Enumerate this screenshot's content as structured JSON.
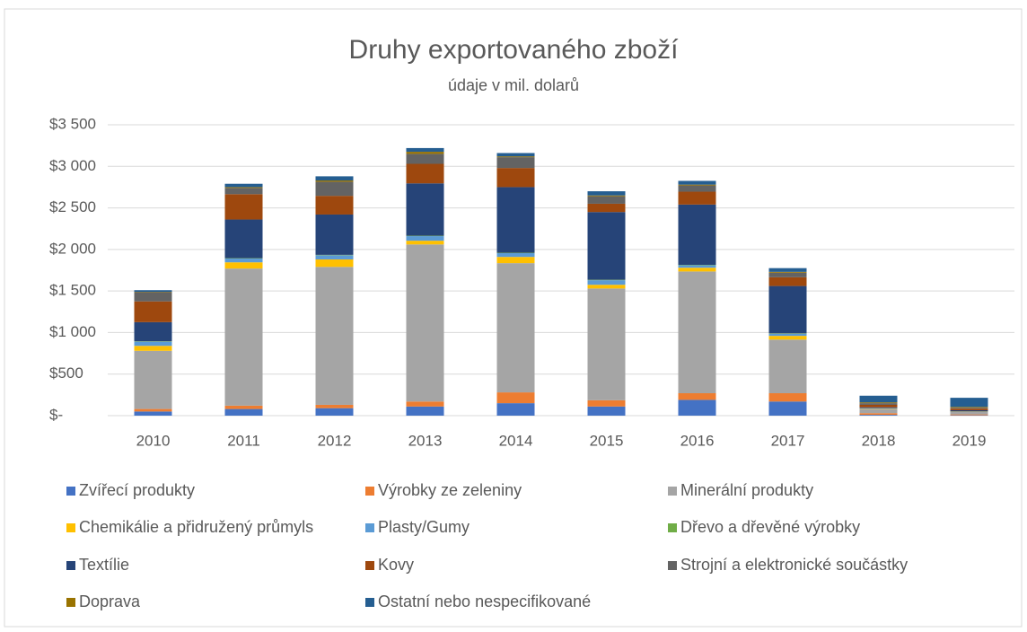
{
  "chart_data": {
    "type": "stacked_bar",
    "title": "Druhy exportovaného zboží",
    "subtitle": "údaje v mil. dolarů",
    "categories": [
      "2010",
      "2011",
      "2012",
      "2013",
      "2014",
      "2015",
      "2016",
      "2017",
      "2018",
      "2019"
    ],
    "series": [
      {
        "name": "Zvířecí produkty",
        "color": "#4472c4",
        "values": [
          50,
          80,
          90,
          110,
          150,
          110,
          190,
          170,
          10,
          5
        ]
      },
      {
        "name": "Výrobky ze zeleniny",
        "color": "#ed7d31",
        "values": [
          30,
          40,
          40,
          60,
          130,
          75,
          80,
          100,
          20,
          10
        ]
      },
      {
        "name": "Minerální produkty",
        "color": "#a5a5a5",
        "values": [
          700,
          1650,
          1660,
          1890,
          1555,
          1345,
          1465,
          645,
          50,
          30
        ]
      },
      {
        "name": "Chemikálie a přidružený průmyls",
        "color": "#ffc000",
        "values": [
          60,
          75,
          90,
          45,
          75,
          45,
          45,
          45,
          5,
          3
        ]
      },
      {
        "name": "Plasty/Gumy",
        "color": "#5b9bd5",
        "values": [
          50,
          45,
          50,
          55,
          45,
          55,
          30,
          25,
          5,
          2
        ]
      },
      {
        "name": "Dřevo a dřevěné výrobky",
        "color": "#70ad47",
        "values": [
          5,
          5,
          5,
          5,
          5,
          5,
          5,
          5,
          0,
          0
        ]
      },
      {
        "name": "Textílie",
        "color": "#264478",
        "values": [
          230,
          465,
          485,
          630,
          790,
          815,
          725,
          570,
          10,
          15
        ]
      },
      {
        "name": "Kovy",
        "color": "#9e480e",
        "values": [
          250,
          305,
          225,
          235,
          230,
          100,
          155,
          105,
          30,
          20
        ]
      },
      {
        "name": "Strojní a elektronické součástky",
        "color": "#636363",
        "values": [
          110,
          75,
          170,
          120,
          130,
          90,
          75,
          55,
          20,
          10
        ]
      },
      {
        "name": "Doprava",
        "color": "#997300",
        "values": [
          5,
          10,
          15,
          25,
          10,
          10,
          10,
          10,
          10,
          10
        ]
      },
      {
        "name": "Ostatní nebo nespecifikované",
        "color": "#255e91",
        "values": [
          20,
          40,
          50,
          45,
          40,
          50,
          45,
          45,
          80,
          110
        ]
      }
    ],
    "ylim": [
      0,
      3500
    ],
    "yticks": [
      {
        "value": 0,
        "label": "$-"
      },
      {
        "value": 500,
        "label": "$500"
      },
      {
        "value": 1000,
        "label": "$1 000"
      },
      {
        "value": 1500,
        "label": "$1 500"
      },
      {
        "value": 2000,
        "label": "$2 000"
      },
      {
        "value": 2500,
        "label": "$2 500"
      },
      {
        "value": 3000,
        "label": "$3 000"
      },
      {
        "value": 3500,
        "label": "$3 500"
      }
    ],
    "grid": true,
    "legend": "bottom"
  }
}
